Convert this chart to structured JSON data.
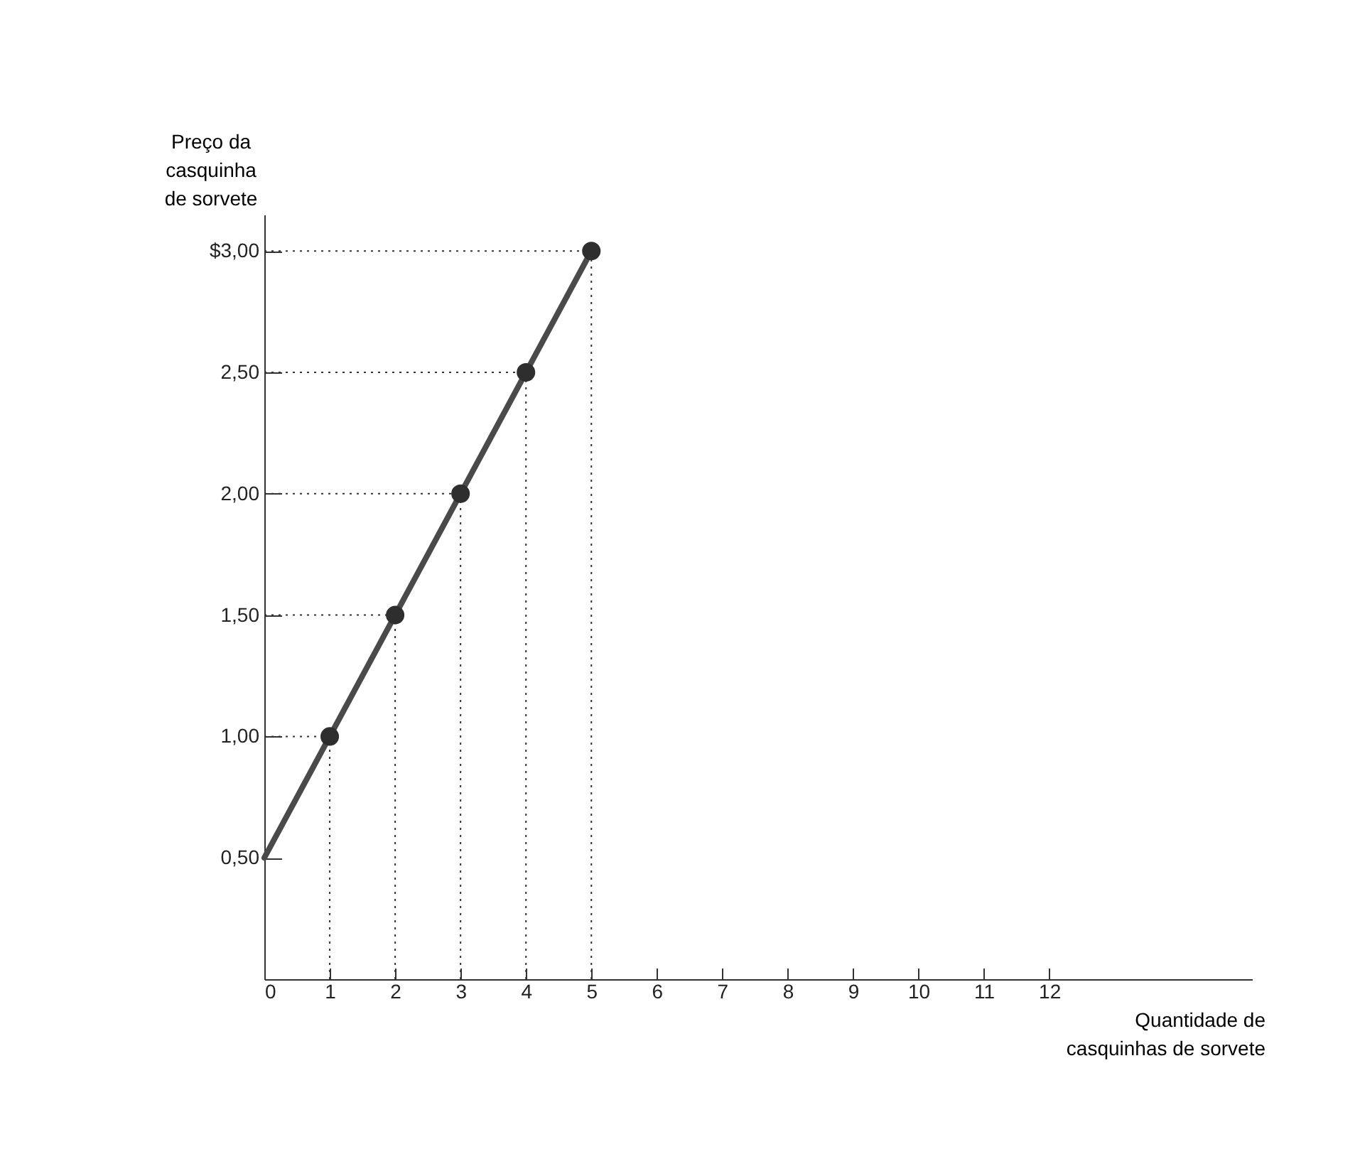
{
  "chart_data": {
    "type": "line",
    "xlabel": "Quantidade de casquinhas de sorvete",
    "ylabel": "Preço da casquinha de sorvete",
    "series": [
      {
        "color": "#333333",
        "x": [
          0,
          5
        ],
        "values": [
          3.0,
          3.0
        ],
        "line_style": "dotted",
        "marker": "none"
      },
      {
        "color": "#333333",
        "x": [
          0,
          4
        ],
        "values": [
          2.5,
          2.5
        ],
        "line_style": "dotted",
        "marker": "none"
      },
      {
        "color": "#333333",
        "x": [
          0,
          3
        ],
        "values": [
          2.0,
          2.0
        ],
        "line_style": "dotted",
        "marker": "none"
      },
      {
        "color": "#333333",
        "x": [
          0,
          2
        ],
        "values": [
          1.5,
          1.5
        ],
        "line_style": "dotted",
        "marker": "none"
      },
      {
        "color": "#333333",
        "x": [
          0,
          1
        ],
        "values": [
          1.0,
          1.0
        ],
        "line_style": "dotted",
        "marker": "none"
      },
      {
        "color": "#333333",
        "x": [
          1,
          1
        ],
        "values": [
          0,
          1.0
        ],
        "line_style": "dotted",
        "marker": "none"
      },
      {
        "color": "#333333",
        "x": [
          2,
          2
        ],
        "values": [
          0,
          1.5
        ],
        "line_style": "dotted",
        "marker": "none"
      },
      {
        "color": "#333333",
        "x": [
          3,
          3
        ],
        "values": [
          0,
          2.0
        ],
        "line_style": "dotted",
        "marker": "none"
      },
      {
        "color": "#333333",
        "x": [
          4,
          4
        ],
        "values": [
          0,
          2.5
        ],
        "line_style": "dotted",
        "marker": "none"
      },
      {
        "color": "#333333",
        "x": [
          5,
          5
        ],
        "values": [
          0,
          3.0
        ],
        "line_style": "dotted",
        "marker": "none"
      },
      {
        "color": "#4a4a4a",
        "x": [
          0,
          5
        ],
        "values": [
          0.5,
          3.0
        ],
        "line_style": "solid",
        "marker": "none"
      },
      {
        "type": "scatter",
        "color": "#2e2e2e",
        "x": [
          1,
          2,
          3,
          4,
          5
        ],
        "values": [
          1.0,
          1.5,
          2.0,
          2.5,
          3.0
        ],
        "marker": "circle"
      }
    ],
    "xlim": [
      0,
      15.1
    ],
    "xticks": [
      0,
      1,
      2,
      3,
      4,
      5,
      6,
      7,
      8,
      9,
      10,
      11,
      12
    ],
    "ylim": [
      0,
      3.15
    ],
    "yticks": [
      {
        "value": 0.5,
        "label": "0,50"
      },
      {
        "value": 1.0,
        "label": "1,00"
      },
      {
        "value": 1.5,
        "label": "1,50"
      },
      {
        "value": 2.0,
        "label": "2,00"
      },
      {
        "value": 2.5,
        "label": "2,50"
      },
      {
        "value": 3.0,
        "label": "$3,00"
      }
    ]
  }
}
